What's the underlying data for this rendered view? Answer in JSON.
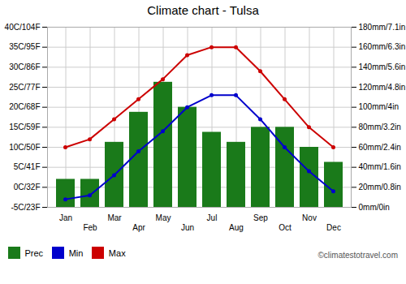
{
  "chart_data": {
    "type": "bar",
    "title": "Climate chart - Tulsa",
    "categories": [
      "Jan",
      "Feb",
      "Mar",
      "Apr",
      "May",
      "Jun",
      "Jul",
      "Aug",
      "Sep",
      "Oct",
      "Nov",
      "Dec"
    ],
    "series": [
      {
        "name": "Prec",
        "type": "bar",
        "axis": "y2",
        "color": "#1a7a1a",
        "values": [
          28,
          28,
          65,
          95,
          125,
          100,
          75,
          65,
          80,
          80,
          60,
          45
        ]
      },
      {
        "name": "Min",
        "type": "line",
        "color": "#0000cc",
        "marker": "circle",
        "values": [
          -3,
          -2,
          3,
          9,
          14,
          20,
          23,
          23,
          17,
          10,
          4,
          -1
        ]
      },
      {
        "name": "Max",
        "type": "line",
        "color": "#cc0000",
        "marker": "circle",
        "values": [
          10,
          12,
          17,
          22,
          27,
          33,
          35,
          35,
          29,
          22,
          15,
          10
        ]
      }
    ],
    "ylim": [
      -5,
      40
    ],
    "yticks": [
      {
        "value": -5,
        "label": "-5C/23F"
      },
      {
        "value": 0,
        "label": "0C/32F"
      },
      {
        "value": 5,
        "label": "5C/41F"
      },
      {
        "value": 10,
        "label": "10C/50F"
      },
      {
        "value": 15,
        "label": "15C/59F"
      },
      {
        "value": 20,
        "label": "20C/68F"
      },
      {
        "value": 25,
        "label": "25C/77F"
      },
      {
        "value": 30,
        "label": "30C/86F"
      },
      {
        "value": 35,
        "label": "35C/95F"
      },
      {
        "value": 40,
        "label": "40C/104F"
      }
    ],
    "y2lim": [
      0,
      180
    ],
    "y2ticks": [
      {
        "value": 0,
        "label": "0mm/0in"
      },
      {
        "value": 20,
        "label": "20mm/0.8in"
      },
      {
        "value": 40,
        "label": "40mm/1.6in"
      },
      {
        "value": 60,
        "label": "60mm/2.4in"
      },
      {
        "value": 80,
        "label": "80mm/3.2in"
      },
      {
        "value": 100,
        "label": "100mm/4in"
      },
      {
        "value": 120,
        "label": "120mm/4.8in"
      },
      {
        "value": 140,
        "label": "140mm/5.6in"
      },
      {
        "value": 160,
        "label": "160mm/6.3in"
      },
      {
        "value": 180,
        "label": "180mm/7.1in"
      }
    ],
    "grid": true,
    "legend": "lower left",
    "annotations": [
      "©climatestotravel.com"
    ]
  }
}
